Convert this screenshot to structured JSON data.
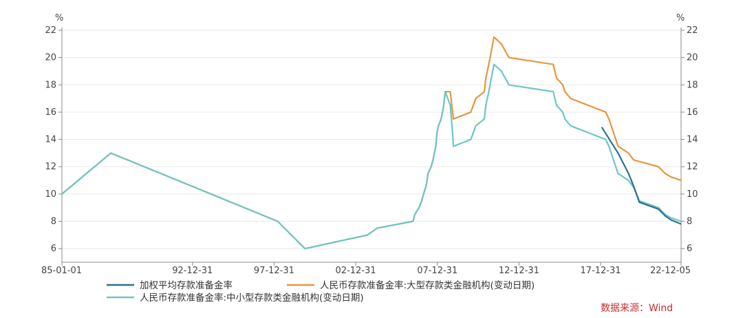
{
  "chart_data": {
    "type": "line",
    "unit_left": "%",
    "unit_right": "%",
    "ylim": [
      5,
      22
    ],
    "yticks": [
      6,
      8,
      10,
      12,
      14,
      16,
      18,
      20,
      22
    ],
    "xlim": [
      "1985-01-01",
      "2022-12-05"
    ],
    "xticks": [
      {
        "label": "85-01-01",
        "date": "1985-01-01"
      },
      {
        "label": "92-12-31",
        "date": "1992-12-31"
      },
      {
        "label": "97-12-31",
        "date": "1997-12-31"
      },
      {
        "label": "02-12-31",
        "date": "2002-12-31"
      },
      {
        "label": "07-12-31",
        "date": "2007-12-31"
      },
      {
        "label": "12-12-31",
        "date": "2012-12-31"
      },
      {
        "label": "17-12-31",
        "date": "2017-12-31"
      },
      {
        "label": "22-12-05",
        "date": "2022-12-05"
      }
    ],
    "grid": true,
    "legend_position": "bottom",
    "series": [
      {
        "name": "加权平均存款准备金率",
        "color": "#2e6f94",
        "points": [
          [
            "2018-01-25",
            14.9
          ],
          [
            "2019-01-25",
            13.0
          ],
          [
            "2019-09-16",
            11.5
          ],
          [
            "2020-01-06",
            10.6
          ],
          [
            "2020-05-15",
            9.4
          ],
          [
            "2021-07-15",
            8.9
          ],
          [
            "2021-12-15",
            8.4
          ],
          [
            "2022-04-25",
            8.1
          ],
          [
            "2022-12-05",
            7.8
          ]
        ]
      },
      {
        "name": "人民币存款准备金率:大型存款类金融机构(变动日期)",
        "color": "#e8953a",
        "points": [
          [
            "1985-01-01",
            10.0
          ],
          [
            "1987-12-31",
            13.0
          ],
          [
            "1998-03-21",
            8.0
          ],
          [
            "1999-11-21",
            6.0
          ],
          [
            "2003-09-21",
            7.0
          ],
          [
            "2004-04-25",
            7.5
          ],
          [
            "2006-07-05",
            8.0
          ],
          [
            "2006-08-15",
            8.5
          ],
          [
            "2006-11-15",
            9.0
          ],
          [
            "2007-01-15",
            9.5
          ],
          [
            "2007-02-25",
            10.0
          ],
          [
            "2007-04-16",
            10.5
          ],
          [
            "2007-05-15",
            11.0
          ],
          [
            "2007-06-05",
            11.5
          ],
          [
            "2007-08-15",
            12.0
          ],
          [
            "2007-09-25",
            12.5
          ],
          [
            "2007-10-25",
            13.0
          ],
          [
            "2007-11-26",
            13.5
          ],
          [
            "2007-12-25",
            14.5
          ],
          [
            "2008-01-25",
            15.0
          ],
          [
            "2008-03-25",
            15.5
          ],
          [
            "2008-04-25",
            16.0
          ],
          [
            "2008-05-20",
            16.5
          ],
          [
            "2008-06-25",
            17.5
          ],
          [
            "2008-10-15",
            17.5
          ],
          [
            "2008-12-05",
            16.0
          ],
          [
            "2008-12-25",
            15.5
          ],
          [
            "2010-01-18",
            16.0
          ],
          [
            "2010-05-10",
            17.0
          ],
          [
            "2010-11-16",
            17.5
          ],
          [
            "2010-12-20",
            18.5
          ],
          [
            "2011-02-24",
            19.5
          ],
          [
            "2011-06-20",
            21.5
          ],
          [
            "2011-12-05",
            21.0
          ],
          [
            "2012-05-18",
            20.0
          ],
          [
            "2015-02-05",
            19.5
          ],
          [
            "2015-04-20",
            18.5
          ],
          [
            "2015-09-06",
            18.0
          ],
          [
            "2015-10-24",
            17.5
          ],
          [
            "2016-03-01",
            17.0
          ],
          [
            "2018-04-25",
            16.0
          ],
          [
            "2018-07-05",
            15.5
          ],
          [
            "2018-10-15",
            14.5
          ],
          [
            "2019-01-25",
            13.5
          ],
          [
            "2019-09-16",
            13.0
          ],
          [
            "2020-01-06",
            12.5
          ],
          [
            "2021-07-15",
            12.0
          ],
          [
            "2021-12-15",
            11.5
          ],
          [
            "2022-04-25",
            11.25
          ],
          [
            "2022-12-05",
            11.0
          ]
        ]
      },
      {
        "name": "人民币存款准备金率:中小型存款类金融机构(变动日期)",
        "color": "#6cc5c6",
        "points": [
          [
            "1985-01-01",
            10.0
          ],
          [
            "1987-12-31",
            13.0
          ],
          [
            "1998-03-21",
            8.0
          ],
          [
            "1999-11-21",
            6.0
          ],
          [
            "2003-09-21",
            7.0
          ],
          [
            "2004-04-25",
            7.5
          ],
          [
            "2006-07-05",
            8.0
          ],
          [
            "2006-08-15",
            8.5
          ],
          [
            "2006-11-15",
            9.0
          ],
          [
            "2007-01-15",
            9.5
          ],
          [
            "2007-02-25",
            10.0
          ],
          [
            "2007-04-16",
            10.5
          ],
          [
            "2007-05-15",
            11.0
          ],
          [
            "2007-06-05",
            11.5
          ],
          [
            "2007-08-15",
            12.0
          ],
          [
            "2007-09-25",
            12.5
          ],
          [
            "2007-10-25",
            13.0
          ],
          [
            "2007-11-26",
            13.5
          ],
          [
            "2007-12-25",
            14.5
          ],
          [
            "2008-01-25",
            15.0
          ],
          [
            "2008-03-25",
            15.5
          ],
          [
            "2008-04-25",
            16.0
          ],
          [
            "2008-05-20",
            16.5
          ],
          [
            "2008-06-25",
            17.5
          ],
          [
            "2008-10-15",
            16.5
          ],
          [
            "2008-12-05",
            14.5
          ],
          [
            "2008-12-25",
            13.5
          ],
          [
            "2010-01-18",
            14.0
          ],
          [
            "2010-05-10",
            15.0
          ],
          [
            "2010-11-16",
            15.5
          ],
          [
            "2010-12-20",
            16.5
          ],
          [
            "2011-02-24",
            17.5
          ],
          [
            "2011-06-20",
            19.5
          ],
          [
            "2011-12-05",
            19.0
          ],
          [
            "2012-05-18",
            18.0
          ],
          [
            "2015-02-05",
            17.5
          ],
          [
            "2015-04-20",
            16.5
          ],
          [
            "2015-09-06",
            16.0
          ],
          [
            "2015-10-24",
            15.5
          ],
          [
            "2016-03-01",
            15.0
          ],
          [
            "2018-04-25",
            14.0
          ],
          [
            "2018-07-05",
            13.5
          ],
          [
            "2018-10-15",
            12.5
          ],
          [
            "2019-01-25",
            11.5
          ],
          [
            "2019-09-16",
            11.0
          ],
          [
            "2020-01-06",
            10.5
          ],
          [
            "2020-05-15",
            9.5
          ],
          [
            "2021-07-15",
            9.0
          ],
          [
            "2021-12-15",
            8.5
          ],
          [
            "2022-04-25",
            8.25
          ],
          [
            "2022-12-05",
            8.0
          ]
        ]
      }
    ]
  },
  "source_note": "数据来源：Wind",
  "colors": {
    "source": "#cc2b2b",
    "grid": "#e8e8e8",
    "axis": "#888888"
  }
}
